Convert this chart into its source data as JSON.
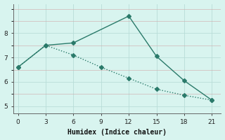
{
  "line1_x": [
    0,
    3,
    6,
    12,
    15,
    18,
    21
  ],
  "line1_y": [
    6.6,
    7.5,
    7.6,
    8.7,
    7.05,
    6.05,
    5.25
  ],
  "line2_x": [
    0,
    3,
    6,
    9,
    12,
    15,
    18,
    21
  ],
  "line2_y": [
    6.6,
    7.5,
    7.1,
    6.6,
    6.15,
    5.7,
    5.45,
    5.25
  ],
  "line_color": "#2a7a6a",
  "bg_color": "#d8f4ef",
  "grid_color": "#b8ddd8",
  "xlabel": "Humidex (Indice chaleur)",
  "xlim": [
    -0.5,
    22
  ],
  "ylim": [
    4.7,
    9.2
  ],
  "xticks": [
    0,
    3,
    6,
    9,
    12,
    15,
    18,
    21
  ],
  "yticks": [
    5,
    6,
    7,
    8
  ],
  "marker": "D",
  "markersize": 3,
  "linewidth": 1.0
}
